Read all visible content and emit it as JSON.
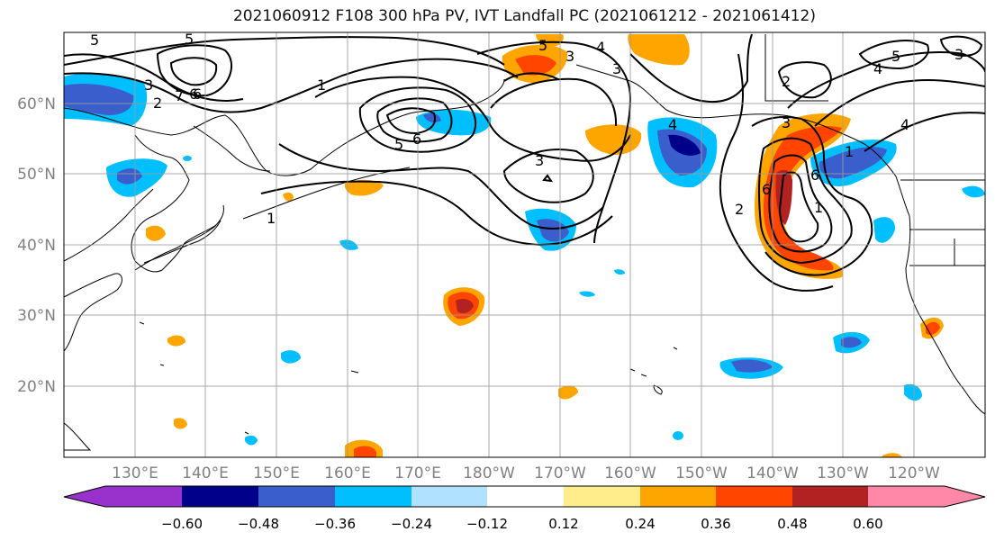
{
  "title": "2021060912 F108 300 hPa PV, IVT Landfall PC (2021061212 - 2021061412)",
  "lat_labels": [
    "60°N",
    "50°N",
    "40°N",
    "30°N",
    "20°N"
  ],
  "lon_labels": [
    "130°E",
    "140°E",
    "150°E",
    "160°E",
    "170°E",
    "180°W",
    "170°W",
    "160°W",
    "150°W",
    "140°W",
    "130°W",
    "120°W"
  ],
  "contour_labels": [
    "5",
    "5",
    "6",
    "7",
    "2",
    "3",
    "1",
    "5",
    "6",
    "3",
    "6",
    "3",
    "5",
    "4",
    "3",
    "2",
    "4",
    "5",
    "4",
    "3",
    "3",
    "4",
    "2",
    "6",
    "1",
    "1",
    "1",
    "6"
  ],
  "colorbar": {
    "ticks": [
      "−0.60",
      "−0.48",
      "−0.36",
      "−0.24",
      "−0.12",
      "0.12",
      "0.24",
      "0.36",
      "0.48",
      "0.60"
    ],
    "colors": [
      "#9932cc",
      "#00008b",
      "#3a5fcd",
      "#00bfff",
      "#b0e2ff",
      "#ffffff",
      "#ffec8b",
      "#ffa500",
      "#ff4500",
      "#b22222",
      "#ff88a8"
    ]
  },
  "map": {
    "lat_range": [
      10,
      70
    ],
    "lon_range": [
      120,
      250
    ],
    "shading_colors": {
      "neg_strong": "#00008b",
      "neg_mid": "#3a5fcd",
      "neg_weak": "#00bfff",
      "pos_weak": "#ffa500",
      "pos_mid": "#ff4500",
      "pos_strong": "#b22222",
      "faint_pos": "#ffec8b"
    }
  }
}
